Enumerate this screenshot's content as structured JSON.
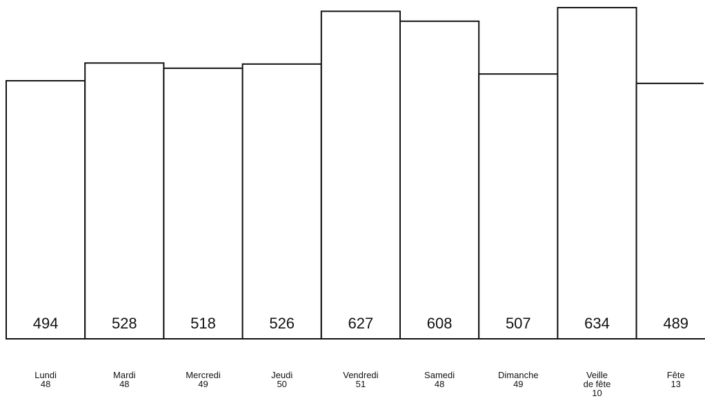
{
  "chart_data": {
    "type": "bar",
    "categories": [
      [
        "Lundi",
        "48"
      ],
      [
        "Mardi",
        "48"
      ],
      [
        "Mercredi",
        "49"
      ],
      [
        "Jeudi",
        "50"
      ],
      [
        "Vendredi",
        "51"
      ],
      [
        "Samedi",
        "48"
      ],
      [
        "Dimanche",
        "49"
      ],
      [
        "Veille",
        "de fête",
        "10"
      ],
      [
        "Fête",
        "13"
      ]
    ],
    "values": [
      494,
      528,
      518,
      526,
      627,
      608,
      507,
      634,
      489
    ],
    "title": "",
    "xlabel": "",
    "ylabel": "",
    "grid": false,
    "legend": "none",
    "colors": {
      "bar_fill": "#ffffff",
      "bar_stroke": "#111111",
      "text": "#111111"
    }
  }
}
